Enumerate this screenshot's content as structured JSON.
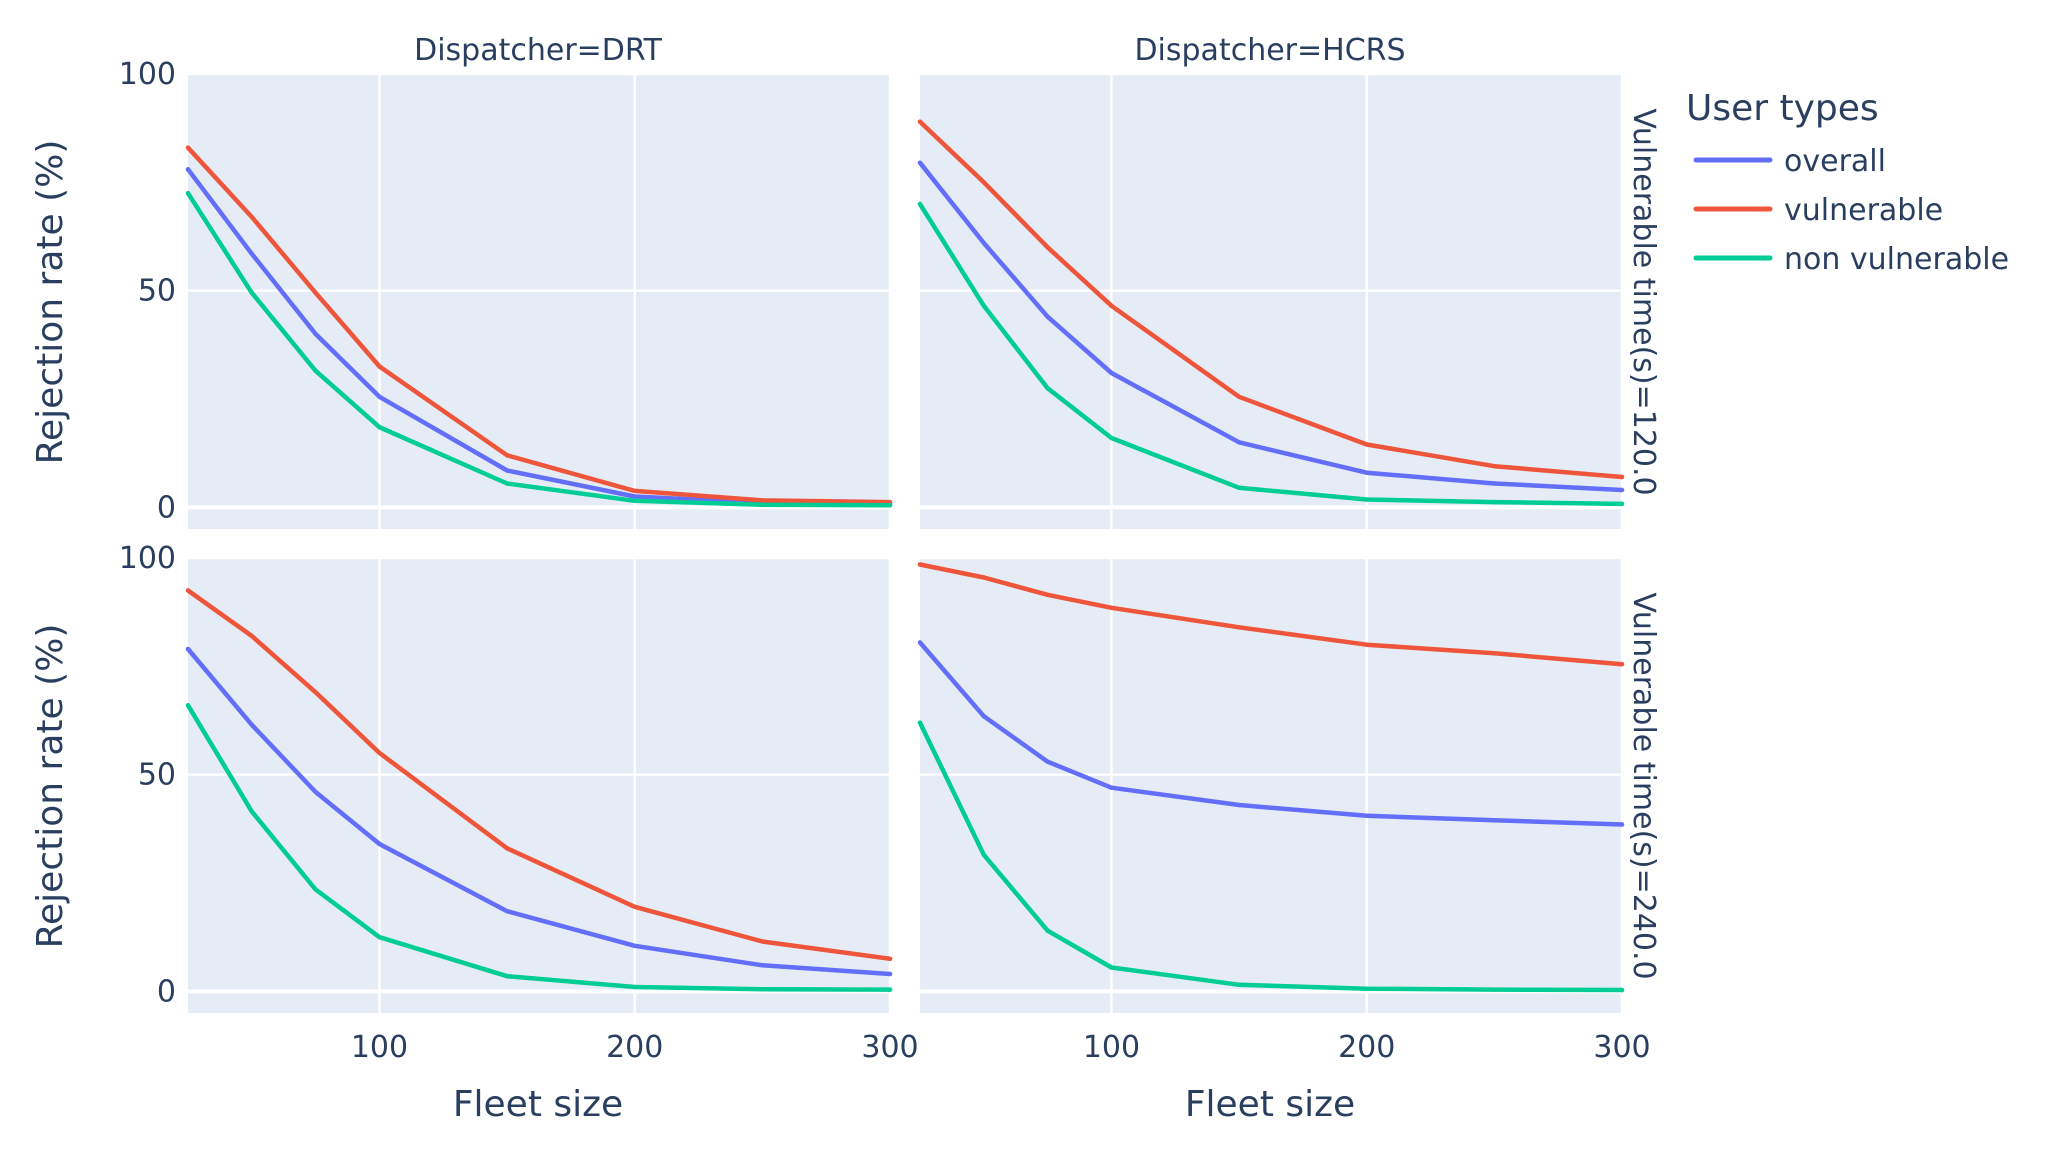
{
  "chart_data": {
    "type": "line",
    "layout": "facet-grid 2x2",
    "col_facet_labels": [
      "Dispatcher=DRT",
      "Dispatcher=HCRS"
    ],
    "row_facet_labels": [
      "Vulnerable time(s)=120.0",
      "Vulnerable time(s)=240.0"
    ],
    "xlabel": "Fleet size",
    "ylabel": "Rejection rate (%)",
    "xlim": [
      25,
      300
    ],
    "ylim": [
      -5,
      100
    ],
    "xticks": [
      100,
      200,
      300
    ],
    "xtick_labels": [
      "100",
      "200",
      "300"
    ],
    "yticks": [
      0,
      50,
      100
    ],
    "ytick_labels": [
      "0",
      "50",
      "100"
    ],
    "grid": true,
    "legend": {
      "title": "User types",
      "placement": "right",
      "entries": [
        "overall",
        "vulnerable",
        "non vulnerable"
      ]
    },
    "colors": {
      "overall": "#636efa",
      "vulnerable": "#ef553b",
      "non vulnerable": "#00cc96",
      "plot_bg": "#e5ecf6"
    },
    "x": [
      25,
      50,
      75,
      100,
      150,
      200,
      250,
      300
    ],
    "panels": [
      {
        "row": 0,
        "col": 0,
        "series": [
          {
            "name": "overall",
            "values": [
              78,
              58.5,
              40,
              25.5,
              8.5,
              2.5,
              1,
              0.8
            ]
          },
          {
            "name": "vulnerable",
            "values": [
              83,
              67,
              49.5,
              32.5,
              12,
              3.8,
              1.6,
              1.2
            ]
          },
          {
            "name": "non vulnerable",
            "values": [
              72.5,
              49.5,
              31.5,
              18.5,
              5.5,
              1.5,
              0.6,
              0.5
            ]
          }
        ]
      },
      {
        "row": 0,
        "col": 1,
        "series": [
          {
            "name": "overall",
            "values": [
              79.5,
              61,
              44,
              31,
              15,
              8,
              5.5,
              4
            ]
          },
          {
            "name": "vulnerable",
            "values": [
              89,
              75,
              60,
              46.5,
              25.5,
              14.5,
              9.5,
              7
            ]
          },
          {
            "name": "non vulnerable",
            "values": [
              70,
              46.5,
              27.5,
              16,
              4.5,
              1.8,
              1.2,
              0.8
            ]
          }
        ]
      },
      {
        "row": 1,
        "col": 0,
        "series": [
          {
            "name": "overall",
            "values": [
              79,
              61.5,
              46,
              34,
              18.5,
              10.5,
              6,
              4
            ]
          },
          {
            "name": "vulnerable",
            "values": [
              92.5,
              82,
              69,
              55,
              33,
              19.5,
              11.5,
              7.5
            ]
          },
          {
            "name": "non vulnerable",
            "values": [
              66,
              41.5,
              23.5,
              12.5,
              3.5,
              1,
              0.5,
              0.4
            ]
          }
        ]
      },
      {
        "row": 1,
        "col": 1,
        "series": [
          {
            "name": "overall",
            "values": [
              80.5,
              63.5,
              53,
              47,
              43,
              40.5,
              39.5,
              38.5
            ]
          },
          {
            "name": "vulnerable",
            "values": [
              98.5,
              95.5,
              91.5,
              88.5,
              84,
              80,
              78,
              75.5
            ]
          },
          {
            "name": "non vulnerable",
            "values": [
              62,
              31.5,
              14,
              5.5,
              1.5,
              0.6,
              0.4,
              0.3
            ]
          }
        ]
      }
    ]
  }
}
